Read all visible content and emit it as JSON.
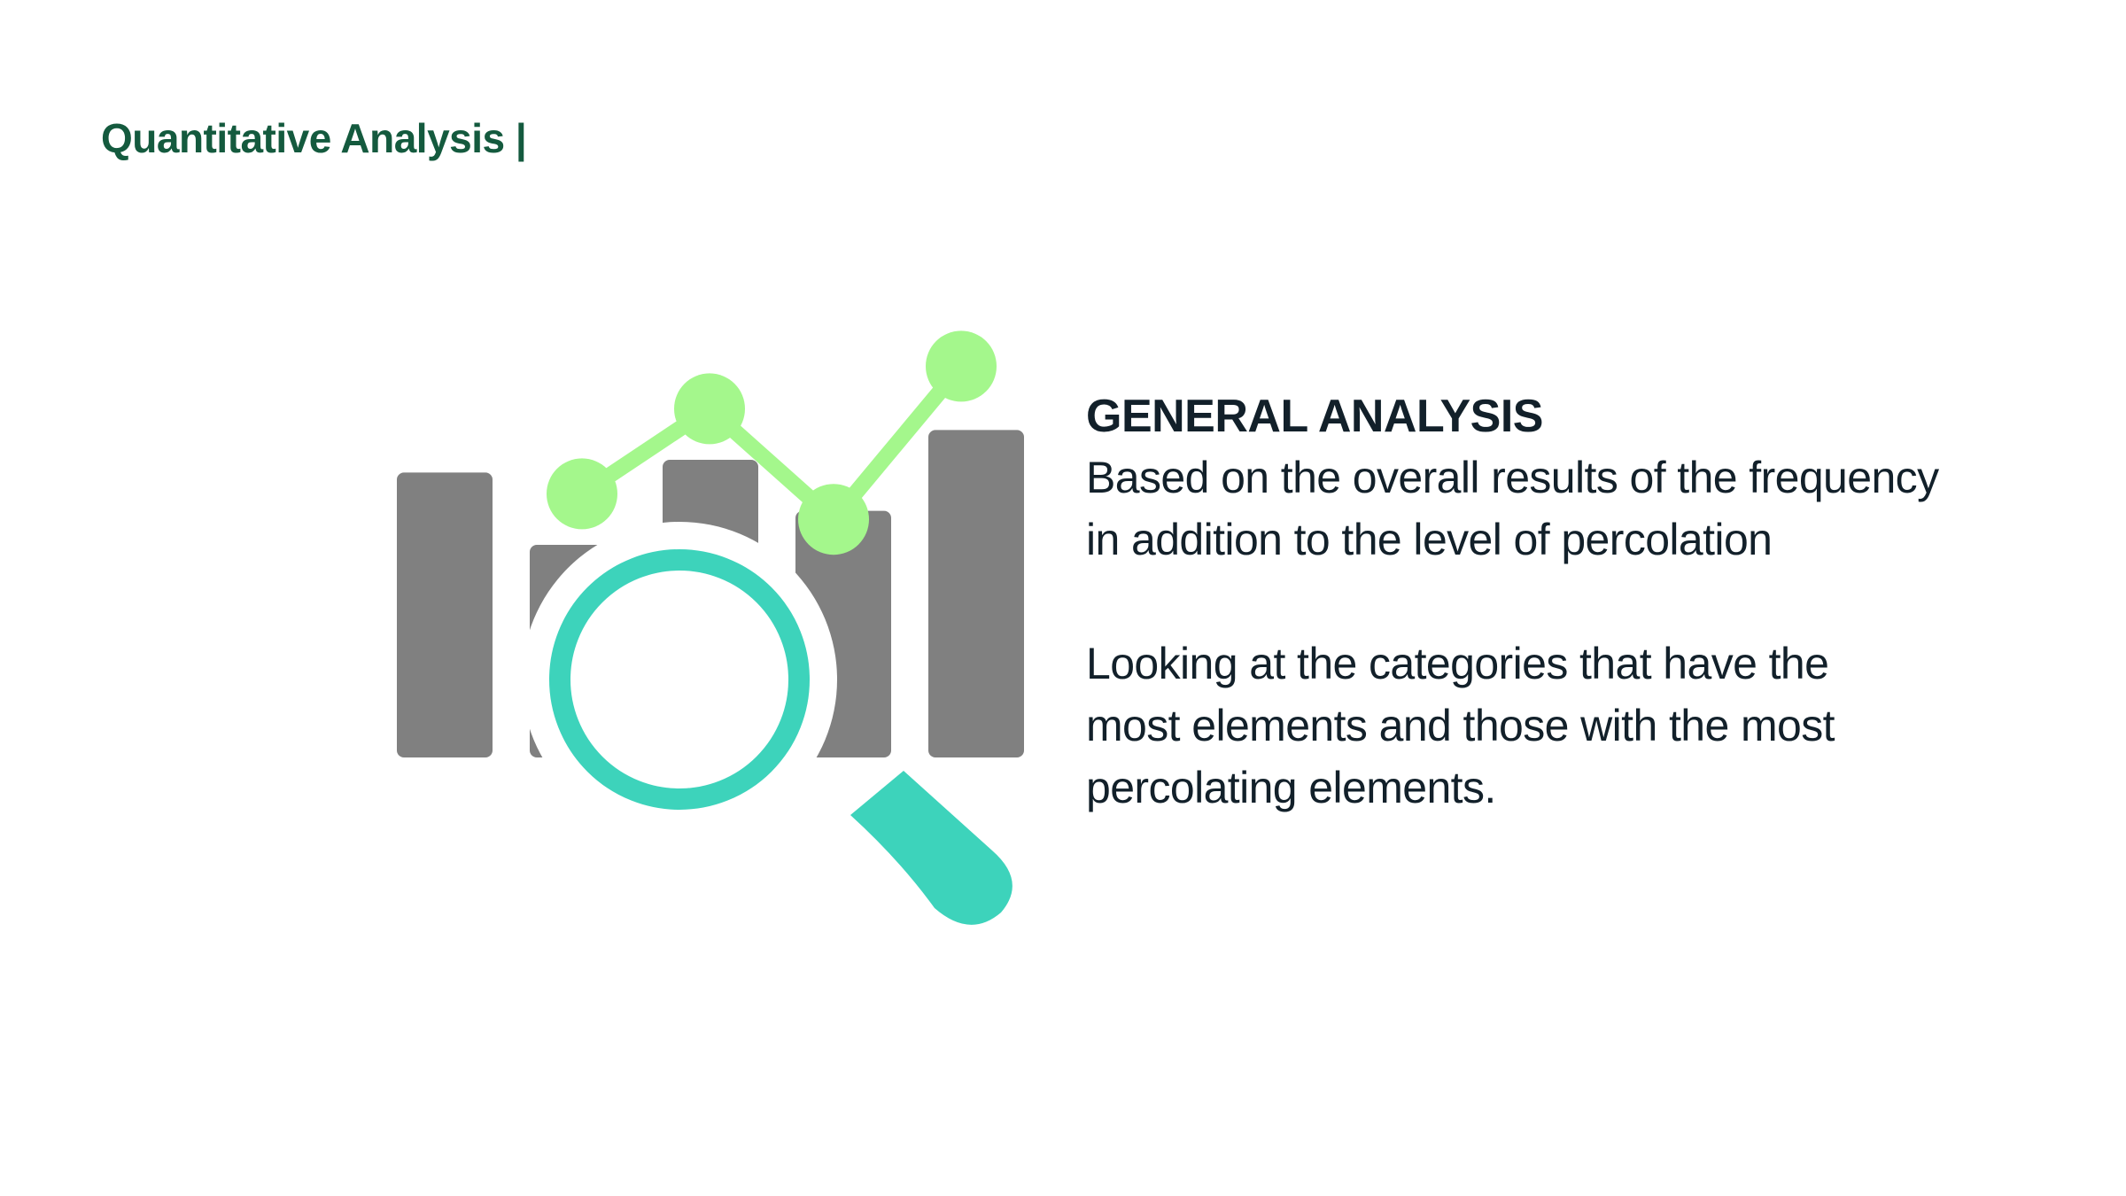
{
  "header": {
    "title": "Quantitative Analysis |"
  },
  "illustration": {
    "icon": "chart-magnifier-icon",
    "bar_levels": [
      0.67,
      0.5,
      0.7,
      0.58,
      0.77
    ],
    "trend_levels": [
      0.62,
      0.82,
      0.56,
      0.92
    ],
    "colors": {
      "bars": "#808080",
      "trend": "#a4f78c",
      "magnifier": "#3dd3bb"
    }
  },
  "content": {
    "heading": "GENERAL ANALYSIS",
    "paragraph1": {
      "line1": "Based on the overall results of the frequency",
      "line2": "in addition to the level of percolation"
    },
    "paragraph2": {
      "line1": "Looking at the categories that have the",
      "line2": "most elements and those with the most",
      "line3": "percolating elements."
    }
  },
  "colors": {
    "header": "#145a3e",
    "text": "#12202a",
    "background": "#ffffff"
  }
}
